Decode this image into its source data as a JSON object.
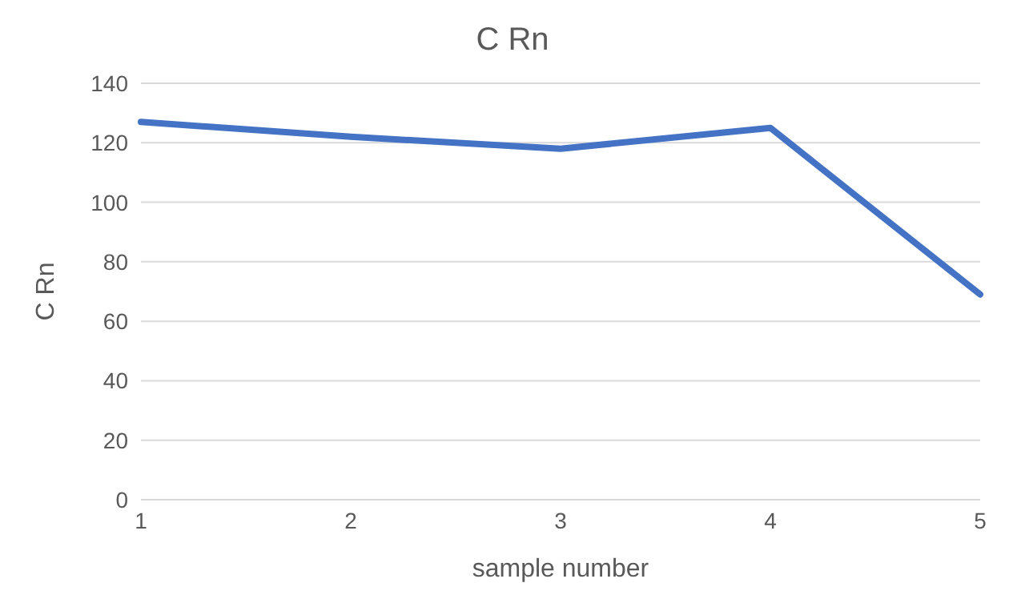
{
  "chart_data": {
    "type": "line",
    "title": "C Rn",
    "xlabel": "sample number",
    "ylabel": "C Rn",
    "categories": [
      "1",
      "2",
      "3",
      "4",
      "5"
    ],
    "series": [
      {
        "color": "#4472c4",
        "values": [
          127,
          122,
          118,
          125,
          69
        ]
      }
    ],
    "ylim": [
      0,
      140
    ],
    "yticks": [
      0,
      20,
      40,
      60,
      80,
      100,
      120,
      140
    ],
    "grid": "y",
    "legend": false,
    "marker": "none",
    "line_style": "solid"
  }
}
